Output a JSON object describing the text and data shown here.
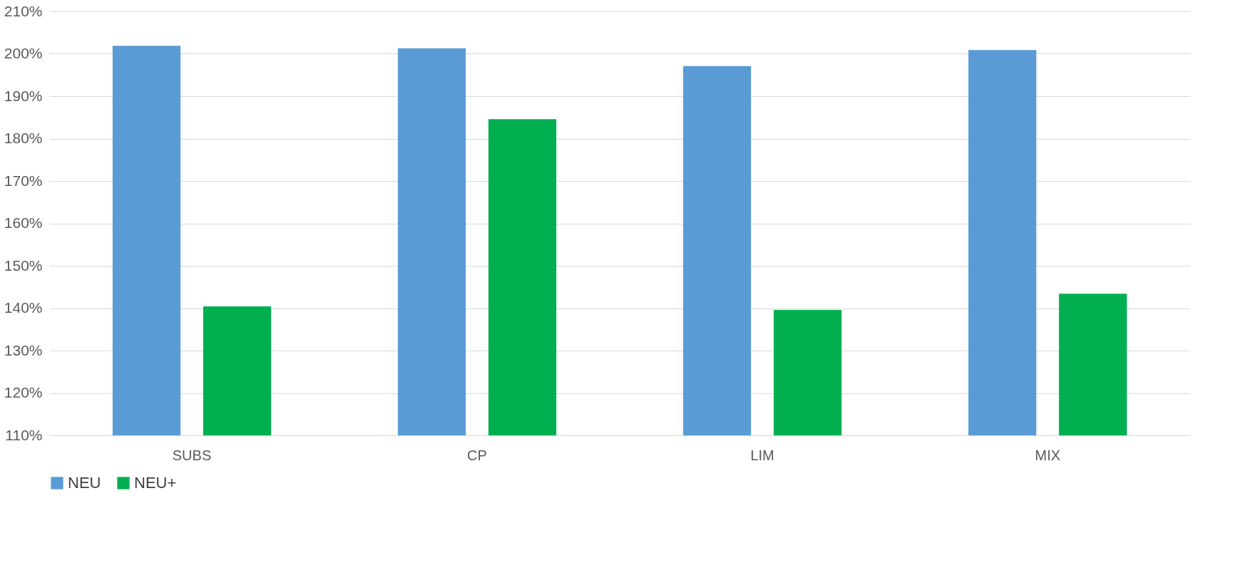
{
  "chart_data": {
    "type": "bar",
    "categories": [
      "SUBS",
      "CP",
      "LIM",
      "MIX"
    ],
    "series": [
      {
        "name": "NEU",
        "color": "#5b9bd5",
        "values": [
          201.9,
          201.3,
          197.1,
          200.9
        ]
      },
      {
        "name": "NEU+",
        "color": "#00b050",
        "values": [
          140.4,
          184.6,
          139.6,
          143.4
        ]
      }
    ],
    "ylim": [
      110,
      210
    ],
    "yticks": [
      {
        "value": 110,
        "label": "110%"
      },
      {
        "value": 120,
        "label": "120%"
      },
      {
        "value": 130,
        "label": "130%"
      },
      {
        "value": 140,
        "label": "140%"
      },
      {
        "value": 150,
        "label": "150%"
      },
      {
        "value": 160,
        "label": "160%"
      },
      {
        "value": 170,
        "label": "170%"
      },
      {
        "value": 180,
        "label": "180%"
      },
      {
        "value": 190,
        "label": "190%"
      },
      {
        "value": 200,
        "label": "200%"
      },
      {
        "value": 210,
        "label": "210%"
      }
    ],
    "grid": "y",
    "legend": "bottom"
  }
}
